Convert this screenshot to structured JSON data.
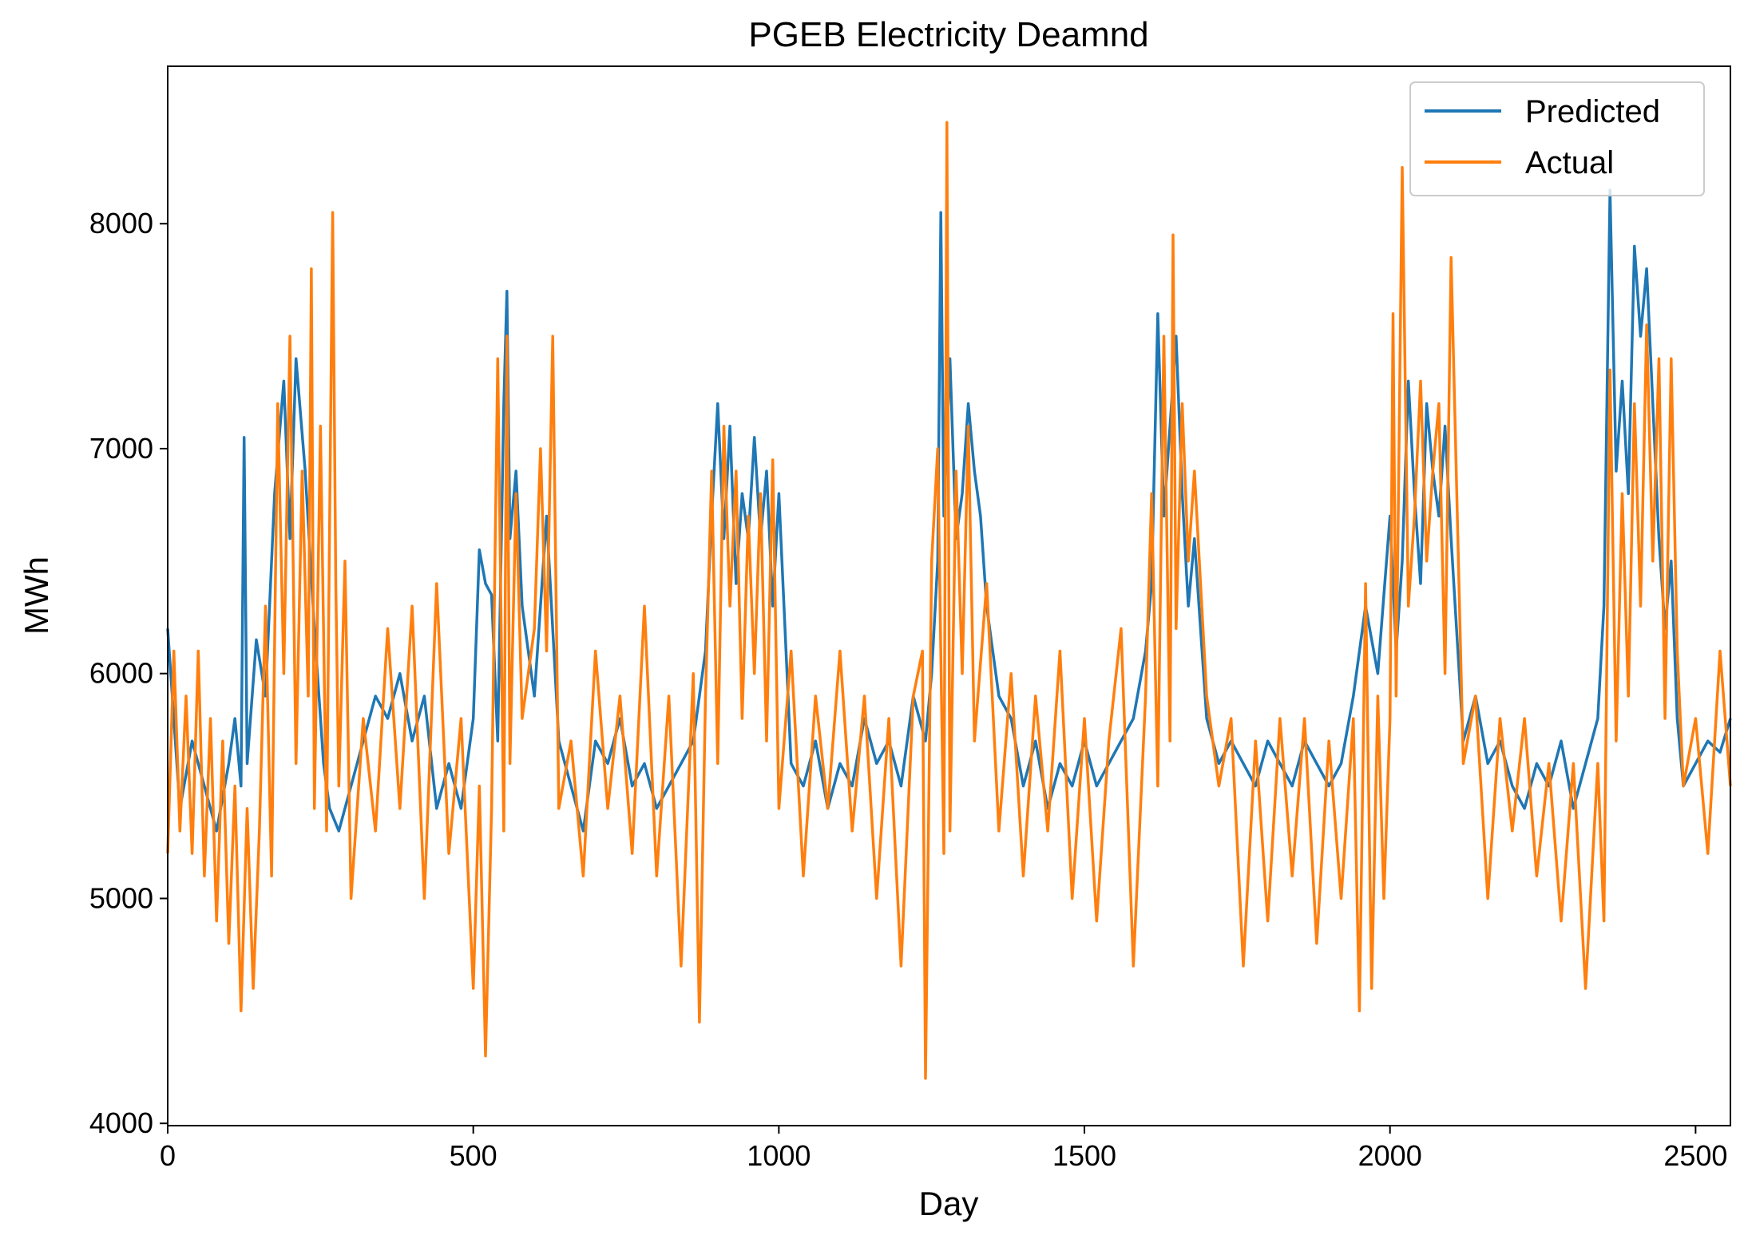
{
  "chart_data": {
    "type": "line",
    "title": "PGEB Electricity Deamnd",
    "xlabel": "Day",
    "ylabel": "MWh",
    "xlim": [
      0,
      2557
    ],
    "ylim": [
      3990,
      8700
    ],
    "x_ticks": [
      0,
      500,
      1000,
      1500,
      2000,
      2500
    ],
    "y_ticks": [
      4000,
      5000,
      6000,
      7000,
      8000
    ],
    "grid": false,
    "legend_position": "top-right",
    "series": [
      {
        "name": "Predicted",
        "color": "#1f77b4",
        "x": [
          0,
          20,
          40,
          60,
          80,
          100,
          110,
          120,
          125,
          130,
          145,
          160,
          175,
          190,
          200,
          210,
          225,
          240,
          255,
          265,
          280,
          300,
          320,
          340,
          360,
          380,
          400,
          420,
          440,
          460,
          480,
          500,
          510,
          520,
          530,
          540,
          550,
          555,
          560,
          570,
          580,
          600,
          620,
          640,
          660,
          680,
          700,
          720,
          740,
          760,
          780,
          800,
          820,
          840,
          860,
          880,
          890,
          900,
          910,
          920,
          930,
          940,
          950,
          960,
          970,
          980,
          990,
          1000,
          1020,
          1040,
          1060,
          1080,
          1100,
          1120,
          1140,
          1160,
          1180,
          1200,
          1220,
          1240,
          1250,
          1260,
          1265,
          1270,
          1280,
          1290,
          1300,
          1310,
          1320,
          1330,
          1340,
          1350,
          1360,
          1380,
          1400,
          1420,
          1440,
          1460,
          1480,
          1500,
          1520,
          1540,
          1560,
          1580,
          1600,
          1610,
          1620,
          1630,
          1640,
          1650,
          1660,
          1670,
          1680,
          1690,
          1700,
          1720,
          1740,
          1760,
          1780,
          1800,
          1820,
          1840,
          1860,
          1880,
          1900,
          1920,
          1940,
          1960,
          1980,
          2000,
          2010,
          2020,
          2030,
          2040,
          2050,
          2060,
          2070,
          2080,
          2090,
          2100,
          2120,
          2140,
          2160,
          2180,
          2200,
          2220,
          2240,
          2260,
          2280,
          2300,
          2320,
          2340,
          2350,
          2360,
          2370,
          2380,
          2390,
          2400,
          2410,
          2420,
          2430,
          2440,
          2450,
          2460,
          2470,
          2480,
          2500,
          2520,
          2540,
          2557
        ],
        "y": [
          6200,
          5400,
          5700,
          5500,
          5300,
          5600,
          5800,
          5500,
          7050,
          5600,
          6150,
          5900,
          6800,
          7300,
          6600,
          7400,
          6900,
          6200,
          5600,
          5400,
          5300,
          5500,
          5700,
          5900,
          5800,
          6000,
          5700,
          5900,
          5400,
          5600,
          5400,
          5800,
          6550,
          6400,
          6350,
          5700,
          7200,
          7700,
          6600,
          6900,
          6300,
          5900,
          6700,
          5700,
          5500,
          5300,
          5700,
          5600,
          5800,
          5500,
          5600,
          5400,
          5500,
          5600,
          5700,
          6100,
          6700,
          7200,
          6600,
          7100,
          6400,
          6800,
          6600,
          7050,
          6600,
          6900,
          6300,
          6800,
          5600,
          5500,
          5700,
          5400,
          5600,
          5500,
          5800,
          5600,
          5700,
          5500,
          5900,
          5700,
          6000,
          6500,
          8050,
          6700,
          7400,
          6600,
          6800,
          7200,
          6900,
          6700,
          6300,
          6100,
          5900,
          5800,
          5500,
          5700,
          5400,
          5600,
          5500,
          5700,
          5500,
          5600,
          5700,
          5800,
          6100,
          6400,
          7600,
          6700,
          7100,
          7500,
          6800,
          6300,
          6600,
          6200,
          5800,
          5600,
          5700,
          5600,
          5500,
          5700,
          5600,
          5500,
          5700,
          5600,
          5500,
          5600,
          5900,
          6300,
          6000,
          6700,
          6100,
          6500,
          7300,
          6800,
          6400,
          7200,
          6900,
          6700,
          7100,
          6600,
          5700,
          5900,
          5600,
          5700,
          5500,
          5400,
          5600,
          5500,
          5700,
          5400,
          5600,
          5800,
          6300,
          8150,
          6900,
          7300,
          6800,
          7900,
          7500,
          7800,
          7200,
          6600,
          6200,
          6500,
          5800,
          5500,
          5600,
          5700,
          5650,
          5800
        ]
      },
      {
        "name": "Actual",
        "color": "#ff7f0e",
        "x": [
          0,
          10,
          20,
          30,
          40,
          50,
          60,
          70,
          80,
          90,
          100,
          110,
          120,
          130,
          140,
          150,
          160,
          170,
          180,
          190,
          200,
          210,
          220,
          230,
          235,
          240,
          250,
          260,
          270,
          275,
          280,
          290,
          300,
          320,
          340,
          360,
          380,
          400,
          420,
          440,
          460,
          480,
          500,
          510,
          520,
          530,
          540,
          550,
          555,
          560,
          570,
          580,
          600,
          610,
          620,
          630,
          640,
          660,
          680,
          700,
          720,
          740,
          760,
          780,
          800,
          820,
          840,
          860,
          870,
          880,
          890,
          900,
          910,
          920,
          930,
          940,
          950,
          960,
          970,
          980,
          990,
          1000,
          1020,
          1040,
          1060,
          1080,
          1100,
          1120,
          1140,
          1160,
          1180,
          1200,
          1220,
          1235,
          1240,
          1250,
          1260,
          1270,
          1275,
          1280,
          1290,
          1300,
          1310,
          1320,
          1340,
          1360,
          1380,
          1400,
          1420,
          1440,
          1460,
          1480,
          1500,
          1520,
          1540,
          1560,
          1580,
          1600,
          1610,
          1620,
          1630,
          1640,
          1645,
          1650,
          1660,
          1670,
          1680,
          1700,
          1720,
          1740,
          1760,
          1780,
          1800,
          1820,
          1840,
          1860,
          1880,
          1900,
          1920,
          1940,
          1950,
          1960,
          1970,
          1980,
          1990,
          2000,
          2005,
          2010,
          2020,
          2030,
          2040,
          2050,
          2060,
          2070,
          2080,
          2090,
          2100,
          2120,
          2140,
          2160,
          2180,
          2200,
          2220,
          2240,
          2260,
          2280,
          2300,
          2320,
          2340,
          2350,
          2360,
          2370,
          2380,
          2390,
          2400,
          2410,
          2420,
          2430,
          2440,
          2450,
          2460,
          2470,
          2480,
          2500,
          2520,
          2540,
          2557
        ],
        "y": [
          5200,
          6100,
          5300,
          5900,
          5200,
          6100,
          5100,
          5800,
          4900,
          5700,
          4800,
          5500,
          4500,
          5400,
          4600,
          5300,
          6300,
          5100,
          7200,
          6000,
          7500,
          5600,
          6900,
          5900,
          7800,
          5400,
          7100,
          5300,
          8050,
          6400,
          5500,
          6500,
          5000,
          5800,
          5300,
          6200,
          5400,
          6300,
          5000,
          6400,
          5200,
          5800,
          4600,
          5500,
          4300,
          5400,
          7400,
          5300,
          7500,
          5600,
          6800,
          5800,
          6200,
          7000,
          6100,
          7500,
          5400,
          5700,
          5100,
          6100,
          5400,
          5900,
          5200,
          6300,
          5100,
          5900,
          4700,
          6000,
          4450,
          5900,
          6900,
          5600,
          7100,
          6300,
          6900,
          5800,
          6700,
          6000,
          6800,
          5700,
          6950,
          5400,
          6100,
          5100,
          5900,
          5400,
          6100,
          5300,
          5900,
          5000,
          5800,
          4700,
          5900,
          6100,
          4200,
          6500,
          7000,
          5200,
          8450,
          5300,
          6900,
          6000,
          7100,
          5700,
          6400,
          5300,
          6000,
          5100,
          5900,
          5300,
          6100,
          5000,
          5800,
          4900,
          5700,
          6200,
          4700,
          5900,
          6800,
          5500,
          7500,
          5700,
          7950,
          6200,
          7200,
          6500,
          6900,
          5900,
          5500,
          5800,
          4700,
          5700,
          4900,
          5800,
          5100,
          5800,
          4800,
          5700,
          5000,
          5800,
          4500,
          6400,
          4600,
          5900,
          5000,
          5800,
          7600,
          5900,
          8250,
          6300,
          6700,
          7300,
          6500,
          6900,
          7200,
          6000,
          7850,
          5600,
          5900,
          5000,
          5800,
          5300,
          5800,
          5100,
          5600,
          4900,
          5600,
          4600,
          5600,
          4900,
          7350,
          5700,
          6800,
          5900,
          7200,
          6300,
          7550,
          6500,
          7400,
          5800,
          7400,
          6100,
          5500,
          5800,
          5200,
          6100,
          5500
        ]
      }
    ]
  }
}
